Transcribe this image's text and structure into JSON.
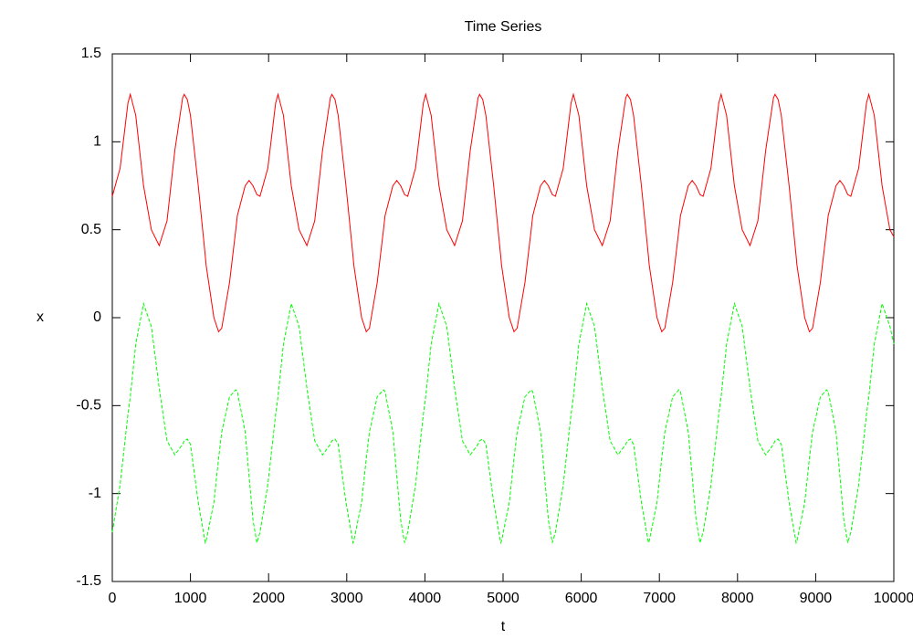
{
  "chart_data": {
    "type": "line",
    "title": "Time Series",
    "x_label": "t",
    "y_label": "x",
    "x": [
      0,
      100,
      200,
      230,
      300,
      400,
      500,
      600,
      700,
      800,
      900,
      920,
      960,
      1000,
      1100,
      1190,
      1200,
      1300,
      1360,
      1400,
      1500,
      1580,
      1600,
      1700,
      1750,
      1800,
      1850,
      1890,
      1990,
      2090,
      2120,
      2190,
      2290,
      2390,
      2490,
      2590,
      2690,
      2790,
      2810,
      2850,
      2890,
      2990,
      3080,
      3090,
      3190,
      3250,
      3290,
      3390,
      3470,
      3490,
      3590,
      3640,
      3690,
      3740,
      3780,
      3880,
      3980,
      4010,
      4080,
      4180,
      4280,
      4380,
      4480,
      4580,
      4680,
      4700,
      4740,
      4780,
      4880,
      4970,
      4980,
      5080,
      5140,
      5180,
      5280,
      5360,
      5380,
      5480,
      5530,
      5580,
      5630,
      5670,
      5770,
      5870,
      5900,
      5970,
      6070,
      6170,
      6270,
      6370,
      6470,
      6570,
      6590,
      6630,
      6670,
      6770,
      6860,
      6870,
      6970,
      7030,
      7070,
      7170,
      7250,
      7270,
      7370,
      7420,
      7470,
      7520,
      7560,
      7660,
      7760,
      7790,
      7860,
      7960,
      8060,
      8160,
      8260,
      8360,
      8460,
      8480,
      8520,
      8560,
      8660,
      8750,
      8760,
      8860,
      8920,
      8960,
      9060,
      9140,
      9160,
      9260,
      9310,
      9360,
      9410,
      9450,
      9550,
      9650,
      9680,
      9750,
      9850,
      9950,
      10000
    ],
    "series": [
      {
        "color": "#ff0000",
        "dash": false,
        "values": [
          0.69,
          0.85,
          1.22,
          1.27,
          1.15,
          0.75,
          0.5,
          0.41,
          0.55,
          0.95,
          1.25,
          1.27,
          1.24,
          1.15,
          0.75,
          0.35,
          0.3,
          0.0,
          -0.08,
          -0.06,
          0.2,
          0.5,
          0.58,
          0.75,
          0.78,
          0.75,
          0.7,
          0.69,
          0.85,
          1.22,
          1.27,
          1.15,
          0.75,
          0.5,
          0.41,
          0.55,
          0.95,
          1.25,
          1.27,
          1.24,
          1.15,
          0.75,
          0.35,
          0.3,
          0.0,
          -0.08,
          -0.06,
          0.2,
          0.5,
          0.58,
          0.75,
          0.78,
          0.75,
          0.7,
          0.69,
          0.85,
          1.22,
          1.27,
          1.15,
          0.75,
          0.5,
          0.41,
          0.55,
          0.95,
          1.25,
          1.27,
          1.24,
          1.15,
          0.75,
          0.35,
          0.3,
          0.0,
          -0.08,
          -0.06,
          0.2,
          0.5,
          0.58,
          0.75,
          0.78,
          0.75,
          0.7,
          0.69,
          0.85,
          1.22,
          1.27,
          1.15,
          0.75,
          0.5,
          0.41,
          0.55,
          0.95,
          1.25,
          1.27,
          1.24,
          1.15,
          0.75,
          0.35,
          0.3,
          0.0,
          -0.08,
          -0.06,
          0.2,
          0.5,
          0.58,
          0.75,
          0.78,
          0.75,
          0.7,
          0.69,
          0.85,
          1.22,
          1.27,
          1.15,
          0.75,
          0.5,
          0.41,
          0.55,
          0.95,
          1.25,
          1.27,
          1.24,
          1.15,
          0.75,
          0.35,
          0.3,
          0.0,
          -0.08,
          -0.06,
          0.2,
          0.5,
          0.58,
          0.75,
          0.78,
          0.75,
          0.7,
          0.69,
          0.85,
          1.22,
          1.27,
          1.15,
          0.75,
          0.5,
          0.46
        ]
      },
      {
        "color": "#00ff00",
        "dash": true,
        "values": [
          -1.22,
          -0.95,
          -0.55,
          -0.45,
          -0.15,
          0.08,
          -0.05,
          -0.4,
          -0.7,
          -0.78,
          -0.72,
          -0.7,
          -0.69,
          -0.72,
          -1.05,
          -1.28,
          -1.27,
          -1.05,
          -0.8,
          -0.65,
          -0.45,
          -0.41,
          -0.42,
          -0.65,
          -0.9,
          -1.15,
          -1.28,
          -1.22,
          -0.95,
          -0.55,
          -0.45,
          -0.15,
          0.08,
          -0.05,
          -0.4,
          -0.7,
          -0.78,
          -0.72,
          -0.7,
          -0.69,
          -0.72,
          -1.05,
          -1.28,
          -1.27,
          -1.05,
          -0.8,
          -0.65,
          -0.45,
          -0.41,
          -0.42,
          -0.65,
          -0.9,
          -1.15,
          -1.28,
          -1.22,
          -0.95,
          -0.55,
          -0.45,
          -0.15,
          0.08,
          -0.05,
          -0.4,
          -0.7,
          -0.78,
          -0.72,
          -0.7,
          -0.69,
          -0.72,
          -1.05,
          -1.28,
          -1.27,
          -1.05,
          -0.8,
          -0.65,
          -0.45,
          -0.41,
          -0.42,
          -0.65,
          -0.9,
          -1.15,
          -1.28,
          -1.22,
          -0.95,
          -0.55,
          -0.45,
          -0.15,
          0.08,
          -0.05,
          -0.4,
          -0.7,
          -0.78,
          -0.72,
          -0.7,
          -0.69,
          -0.72,
          -1.05,
          -1.28,
          -1.27,
          -1.05,
          -0.8,
          -0.65,
          -0.45,
          -0.41,
          -0.42,
          -0.65,
          -0.9,
          -1.15,
          -1.28,
          -1.22,
          -0.95,
          -0.55,
          -0.45,
          -0.15,
          0.08,
          -0.05,
          -0.4,
          -0.7,
          -0.78,
          -0.72,
          -0.7,
          -0.69,
          -0.72,
          -1.05,
          -1.28,
          -1.27,
          -1.05,
          -0.8,
          -0.65,
          -0.45,
          -0.41,
          -0.42,
          -0.65,
          -0.9,
          -1.15,
          -1.28,
          -1.22,
          -0.95,
          -0.55,
          -0.45,
          -0.15,
          0.08,
          -0.05,
          -0.15
        ]
      }
    ],
    "xlim": [
      0,
      10000
    ],
    "xticks": [
      0,
      1000,
      2000,
      3000,
      4000,
      5000,
      6000,
      7000,
      8000,
      9000,
      10000
    ],
    "ylim": [
      -1.5,
      1.5
    ],
    "yticks": [
      -1.5,
      -1,
      -0.5,
      0,
      0.5,
      1,
      1.5
    ],
    "grid": false
  }
}
